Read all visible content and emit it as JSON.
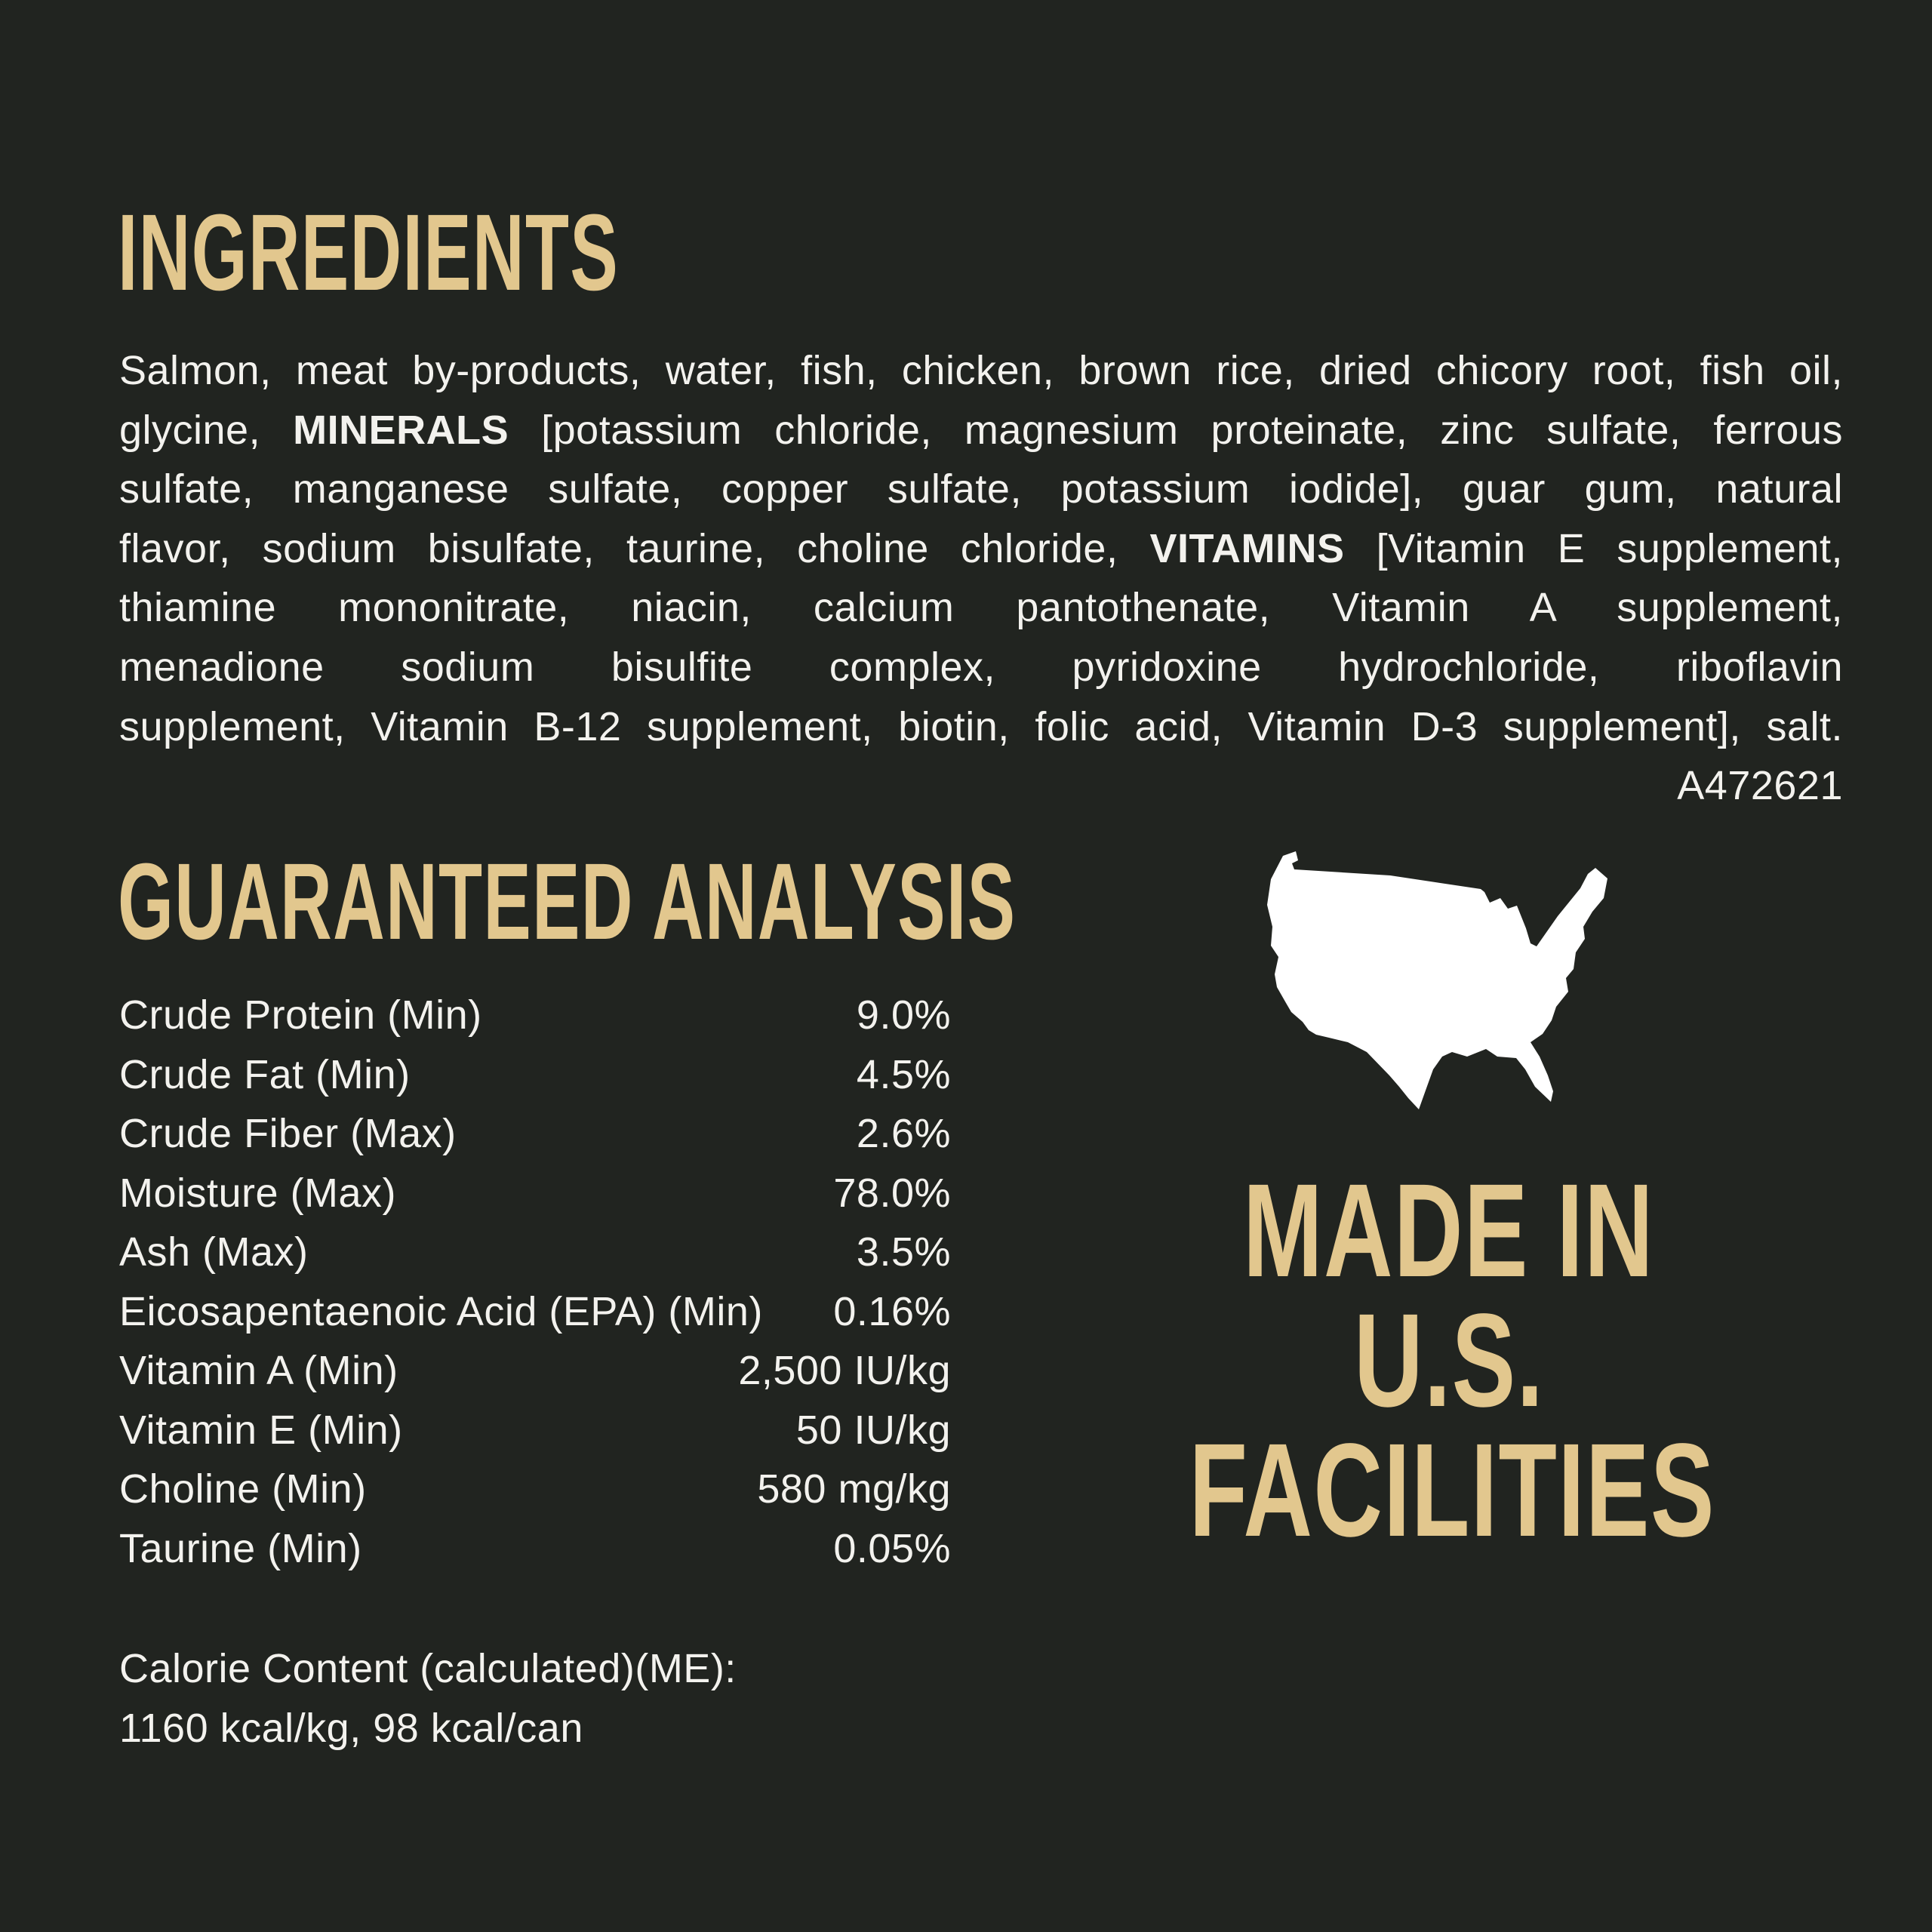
{
  "colors": {
    "background": "#212420",
    "gold_accent": "#e2c78e",
    "text_white": "#f3f2ee",
    "map_fill": "#ffffff"
  },
  "ingredients": {
    "title": "INGREDIENTS",
    "lines": [
      [
        {
          "t": "Salmon, meat by-products, water, fish, chicken, brown rice, dried chicory root, fish oil,"
        }
      ],
      [
        {
          "t": "glycine, "
        },
        {
          "t": "MINERALS",
          "b": true
        },
        {
          "t": " [potassium chloride, magnesium proteinate, zinc sulfate, ferrous"
        }
      ],
      [
        {
          "t": "sulfate, manganese sulfate, copper sulfate, potassium iodide], guar gum, natural"
        }
      ],
      [
        {
          "t": "flavor, sodium bisulfate, taurine, choline chloride, "
        },
        {
          "t": "VITAMINS",
          "b": true
        },
        {
          "t": " [Vitamin E supplement,"
        }
      ],
      [
        {
          "t": "thiamine mononitrate, niacin, calcium pantothenate, Vitamin A supplement,"
        }
      ],
      [
        {
          "t": "menadione sodium bisulfite complex, pyridoxine hydrochloride, riboflavin"
        }
      ],
      [
        {
          "t": "supplement, Vitamin B-12 supplement, biotin, folic acid, Vitamin D-3 supplement], salt."
        }
      ]
    ],
    "code": "A472621"
  },
  "analysis": {
    "title": "GUARANTEED ANALYSIS",
    "rows": [
      {
        "label": "Crude Protein (Min)",
        "value": "9.0%"
      },
      {
        "label": "Crude Fat (Min)",
        "value": "4.5%"
      },
      {
        "label": "Crude Fiber (Max)",
        "value": "2.6%"
      },
      {
        "label": "Moisture (Max)",
        "value": "78.0%"
      },
      {
        "label": "Ash (Max)",
        "value": "3.5%"
      },
      {
        "label": "Eicosapentaenoic Acid (EPA) (Min)",
        "value": "0.16%"
      },
      {
        "label": "Vitamin A (Min)",
        "value": "2,500 IU/kg"
      },
      {
        "label": "Vitamin E (Min)",
        "value": "50 IU/kg"
      },
      {
        "label": "Choline (Min)",
        "value": "580 mg/kg"
      },
      {
        "label": "Taurine (Min)",
        "value": "0.05%"
      }
    ]
  },
  "calories": {
    "line1": "Calorie Content (calculated)(ME):",
    "line2": "1160 kcal/kg, 98 kcal/can"
  },
  "made_in": {
    "map_icon": "usa-map-icon",
    "lines": [
      "MADE IN",
      "U.S.",
      "FACILITIES"
    ]
  }
}
